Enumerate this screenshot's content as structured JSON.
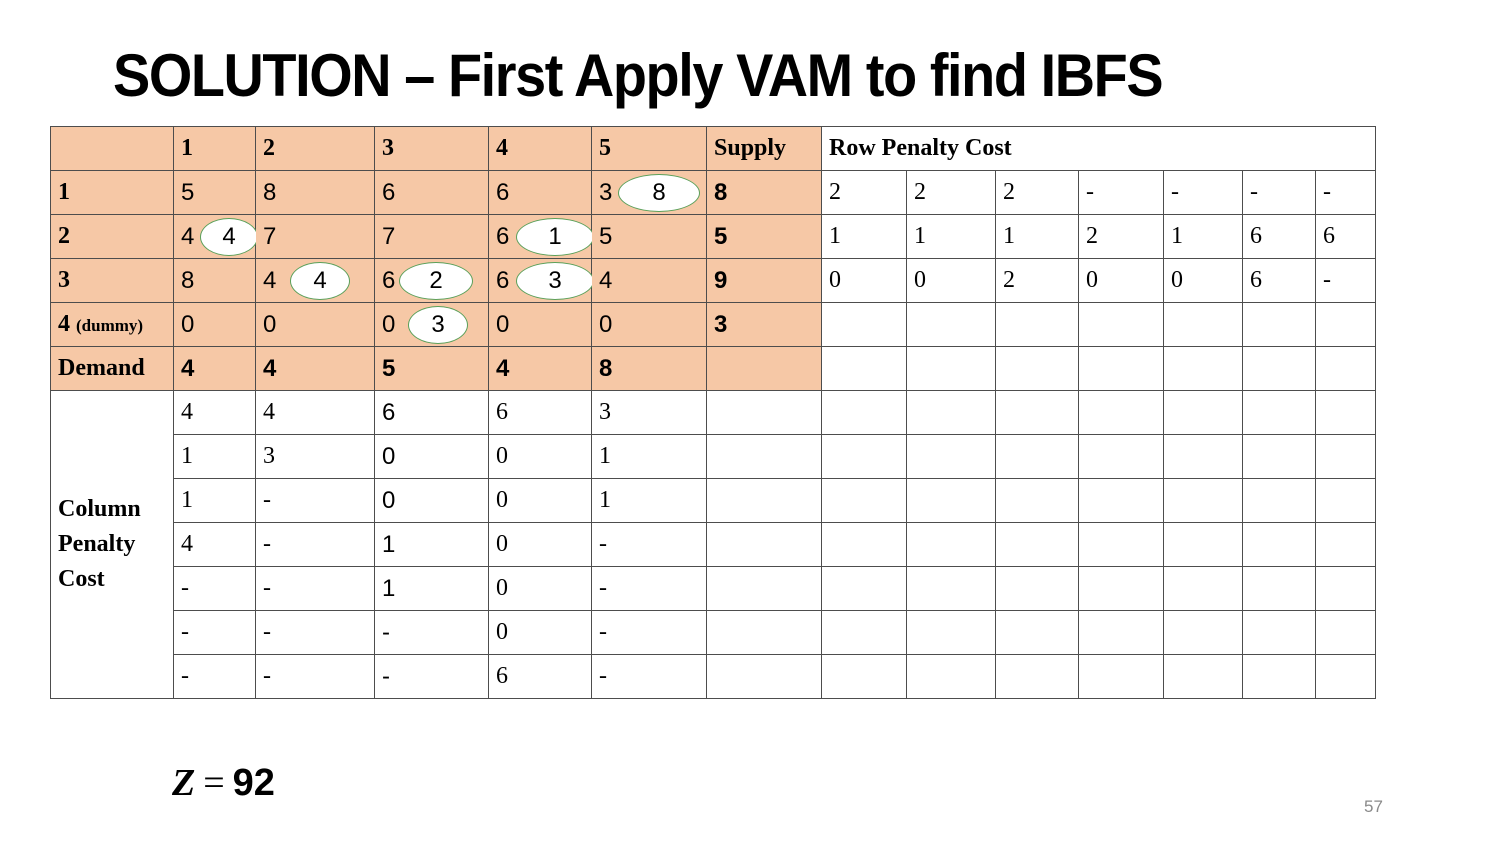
{
  "slide": {
    "title": "SOLUTION – First Apply VAM to find IBFS",
    "page_number": "57"
  },
  "header": {
    "corner": "",
    "columns": [
      "1",
      "2",
      "3",
      "4",
      "5"
    ],
    "supply": "Supply",
    "row_penalty": "Row Penalty Cost"
  },
  "rows": [
    {
      "label": "1",
      "label_suffix": "",
      "costs": [
        "5",
        "8",
        "6",
        "6",
        "3"
      ],
      "allocations": [
        "",
        "",
        "",
        "",
        "8"
      ],
      "supply": "8",
      "row_penalty": [
        "2",
        "2",
        "2",
        "-",
        "-",
        "-",
        "-"
      ]
    },
    {
      "label": "2",
      "label_suffix": "",
      "costs": [
        "4",
        "7",
        "7",
        "6",
        "5"
      ],
      "allocations": [
        "4",
        "",
        "",
        "1",
        ""
      ],
      "supply": "5",
      "row_penalty": [
        "1",
        "1",
        "1",
        "2",
        "1",
        "6",
        "6"
      ]
    },
    {
      "label": "3",
      "label_suffix": "",
      "costs": [
        "8",
        "4",
        "6",
        "6",
        "4"
      ],
      "allocations": [
        "",
        "4",
        "2",
        "3",
        ""
      ],
      "supply": "9",
      "row_penalty": [
        "0",
        "0",
        "2",
        "0",
        "0",
        "6",
        "-"
      ]
    },
    {
      "label": "4",
      "label_suffix": "(dummy)",
      "costs": [
        "0",
        "0",
        "0",
        "0",
        "0"
      ],
      "allocations": [
        "",
        "",
        "3",
        "",
        ""
      ],
      "supply": "3",
      "row_penalty": [
        "",
        "",
        "",
        "",
        "",
        "",
        ""
      ]
    }
  ],
  "demand": {
    "label": "Demand",
    "values": [
      "4",
      "4",
      "5",
      "4",
      "8"
    ]
  },
  "column_penalty": {
    "label_lines": [
      "Column",
      "Penalty",
      "Cost"
    ],
    "rows": [
      [
        "4",
        "4",
        "6",
        "6",
        "3"
      ],
      [
        "1",
        "3",
        "0",
        "0",
        "1"
      ],
      [
        "1",
        "-",
        "0",
        "0",
        "1"
      ],
      [
        "4",
        "-",
        "1",
        "0",
        "-"
      ],
      [
        "-",
        "-",
        "1",
        "0",
        "-"
      ],
      [
        "-",
        "-",
        "-",
        "0",
        "-"
      ],
      [
        "-",
        "-",
        "-",
        "6",
        "-"
      ]
    ]
  },
  "result": {
    "variable": "Z",
    "operator": "=",
    "value": "92"
  },
  "colors": {
    "table_shade": "#f6c8a6",
    "allocation_border": "#5aa05a",
    "grid_line": "#4d4d4d",
    "page_number": "#8a8a8a"
  }
}
